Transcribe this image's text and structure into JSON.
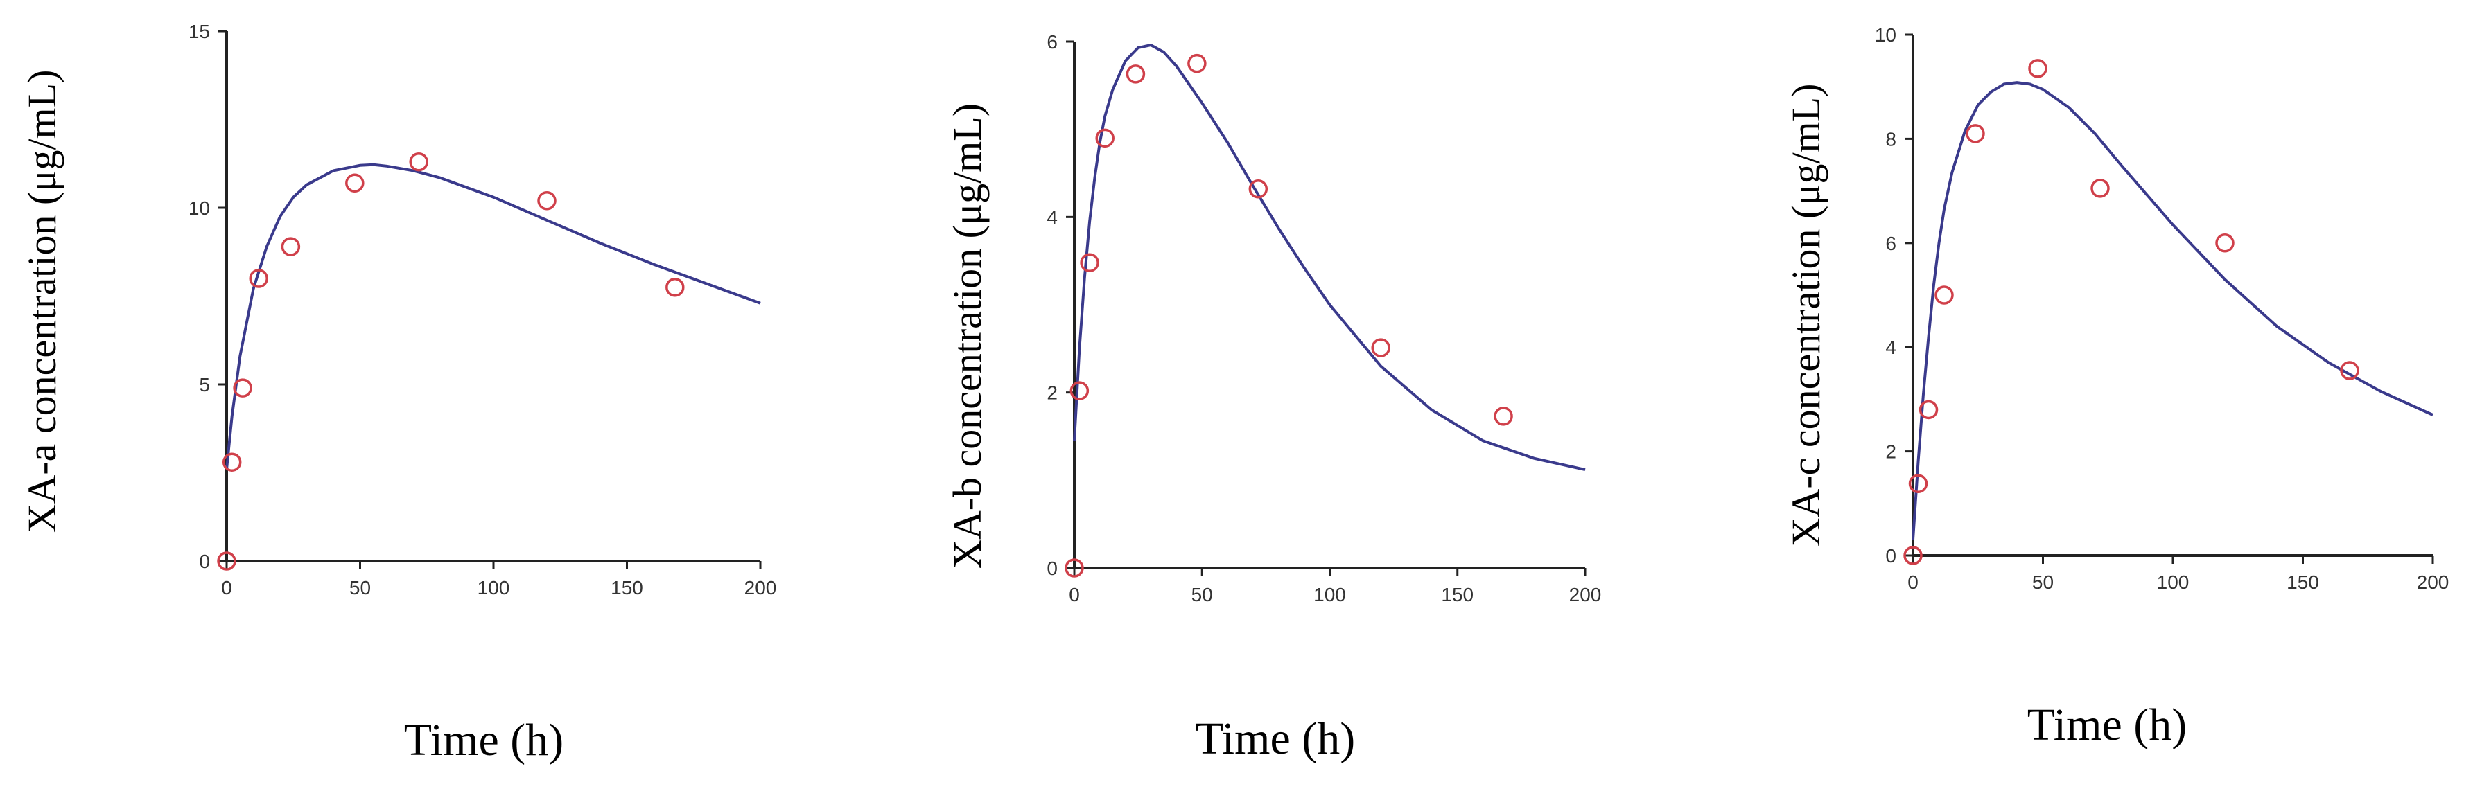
{
  "colors": {
    "fit_line": "#3a3a8c",
    "observed": "#d0404a",
    "axis": "#222222"
  },
  "chart_data": [
    {
      "type": "scatter",
      "xlabel": "Time (h)",
      "ylabel": "XA-a concentration (μg/mL)",
      "xlim": [
        0,
        200
      ],
      "ylim": [
        0,
        15
      ],
      "xticks": [
        0,
        50,
        100,
        150,
        200
      ],
      "yticks": [
        0,
        5,
        10,
        15
      ],
      "grid": false,
      "series": [
        {
          "kind": "observed",
          "marker": "open-circle",
          "x": [
            0,
            2,
            6,
            12,
            24,
            48,
            72,
            120,
            168
          ],
          "y": [
            0,
            2.8,
            4.9,
            8.0,
            8.9,
            10.7,
            11.3,
            10.2,
            7.75
          ]
        },
        {
          "kind": "fitted",
          "marker": "line",
          "x": [
            0,
            2,
            5,
            10,
            15,
            20,
            25,
            30,
            40,
            50,
            55,
            60,
            70,
            80,
            100,
            120,
            140,
            160,
            180,
            200
          ],
          "y": [
            2.6,
            4.1,
            5.8,
            7.7,
            8.9,
            9.75,
            10.3,
            10.65,
            11.05,
            11.2,
            11.22,
            11.18,
            11.05,
            10.85,
            10.3,
            9.65,
            9.0,
            8.4,
            7.85,
            7.3
          ]
        }
      ]
    },
    {
      "type": "scatter",
      "xlabel": "Time (h)",
      "ylabel": "XA-b concentration (μg/mL)",
      "xlim": [
        0,
        200
      ],
      "ylim": [
        0,
        6
      ],
      "xticks": [
        0,
        50,
        100,
        150,
        200
      ],
      "yticks": [
        0,
        2,
        4,
        6
      ],
      "grid": false,
      "series": [
        {
          "kind": "observed",
          "marker": "open-circle",
          "x": [
            0,
            2,
            6,
            12,
            24,
            48,
            72,
            120,
            168
          ],
          "y": [
            0,
            2.02,
            3.48,
            4.9,
            5.63,
            5.75,
            4.32,
            2.51,
            1.73
          ]
        },
        {
          "kind": "fitted",
          "marker": "line",
          "x": [
            0,
            2,
            4,
            6,
            8,
            10,
            12,
            15,
            20,
            25,
            30,
            35,
            40,
            50,
            60,
            70,
            80,
            90,
            100,
            120,
            140,
            160,
            180,
            200
          ],
          "y": [
            1.45,
            2.5,
            3.3,
            3.95,
            4.45,
            4.85,
            5.15,
            5.45,
            5.78,
            5.93,
            5.96,
            5.88,
            5.72,
            5.3,
            4.85,
            4.35,
            3.87,
            3.42,
            3.0,
            2.3,
            1.8,
            1.45,
            1.25,
            1.12
          ]
        }
      ]
    },
    {
      "type": "scatter",
      "xlabel": "Time (h)",
      "ylabel": "XA-c concentration (μg/mL)",
      "xlim": [
        0,
        200
      ],
      "ylim": [
        0,
        10
      ],
      "xticks": [
        0,
        50,
        100,
        150,
        200
      ],
      "yticks": [
        0,
        2,
        4,
        6,
        8,
        10
      ],
      "grid": false,
      "series": [
        {
          "kind": "observed",
          "marker": "open-circle",
          "x": [
            0,
            2,
            6,
            12,
            24,
            48,
            72,
            120,
            168
          ],
          "y": [
            0,
            1.38,
            2.8,
            5.0,
            8.1,
            9.35,
            7.05,
            6.0,
            3.55
          ]
        },
        {
          "kind": "fitted",
          "marker": "line",
          "x": [
            0,
            2,
            4,
            6,
            8,
            10,
            12,
            15,
            20,
            25,
            30,
            35,
            40,
            45,
            50,
            60,
            70,
            80,
            100,
            120,
            140,
            160,
            180,
            200
          ],
          "y": [
            0.3,
            1.8,
            3.1,
            4.2,
            5.2,
            6.0,
            6.65,
            7.35,
            8.15,
            8.65,
            8.9,
            9.05,
            9.08,
            9.05,
            8.95,
            8.6,
            8.1,
            7.5,
            6.35,
            5.3,
            4.4,
            3.7,
            3.15,
            2.7
          ]
        }
      ]
    }
  ]
}
